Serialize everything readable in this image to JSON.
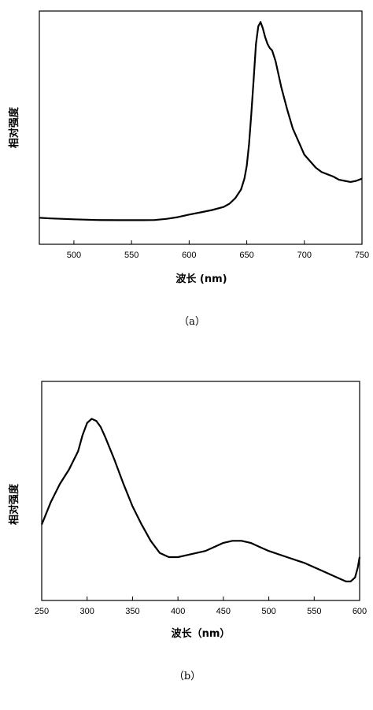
{
  "chart_data": [
    {
      "type": "line",
      "panel_label": "（a）",
      "xlabel": "波长 (nm)",
      "ylabel": "相对强度",
      "xlim": [
        470,
        750
      ],
      "ylim": [
        0,
        1
      ],
      "x_ticks": [
        500,
        550,
        600,
        650,
        700,
        750
      ],
      "y_ticks_labeled": false,
      "grid": false,
      "legend": "none",
      "series": [
        {
          "x": [
            470,
            480,
            500,
            520,
            540,
            560,
            570,
            580,
            590,
            600,
            610,
            620,
            630,
            635,
            640,
            645,
            648,
            650,
            652,
            654,
            656,
            658,
            660,
            662,
            664,
            666,
            668,
            670,
            672,
            675,
            680,
            685,
            690,
            695,
            700,
            705,
            710,
            715,
            720,
            725,
            730,
            735,
            740,
            745,
            750
          ],
          "y": [
            0.1,
            0.097,
            0.093,
            0.09,
            0.089,
            0.089,
            0.09,
            0.095,
            0.103,
            0.115,
            0.125,
            0.136,
            0.15,
            0.165,
            0.19,
            0.23,
            0.28,
            0.34,
            0.44,
            0.58,
            0.74,
            0.9,
            0.98,
            1.0,
            0.97,
            0.93,
            0.9,
            0.88,
            0.87,
            0.82,
            0.7,
            0.6,
            0.51,
            0.45,
            0.39,
            0.36,
            0.33,
            0.31,
            0.3,
            0.29,
            0.275,
            0.27,
            0.265,
            0.27,
            0.28
          ]
        }
      ]
    },
    {
      "type": "line",
      "panel_label": "（b）",
      "xlabel": "波长（nm）",
      "ylabel": "相对强度",
      "xlim": [
        250,
        600
      ],
      "ylim": [
        0,
        1
      ],
      "x_ticks": [
        250,
        300,
        350,
        400,
        450,
        500,
        550,
        600
      ],
      "y_ticks_labeled": false,
      "grid": false,
      "legend": "none",
      "series": [
        {
          "x": [
            250,
            260,
            270,
            280,
            290,
            295,
            300,
            305,
            310,
            315,
            320,
            330,
            340,
            350,
            360,
            370,
            380,
            390,
            400,
            410,
            420,
            430,
            440,
            450,
            460,
            470,
            480,
            490,
            500,
            520,
            540,
            560,
            575,
            585,
            590,
            595,
            598,
            600
          ],
          "y": [
            0.35,
            0.46,
            0.55,
            0.62,
            0.71,
            0.79,
            0.85,
            0.87,
            0.86,
            0.83,
            0.78,
            0.67,
            0.55,
            0.44,
            0.35,
            0.27,
            0.21,
            0.19,
            0.19,
            0.2,
            0.21,
            0.22,
            0.24,
            0.26,
            0.27,
            0.27,
            0.26,
            0.24,
            0.22,
            0.19,
            0.16,
            0.12,
            0.09,
            0.07,
            0.07,
            0.09,
            0.14,
            0.19
          ]
        }
      ]
    }
  ]
}
